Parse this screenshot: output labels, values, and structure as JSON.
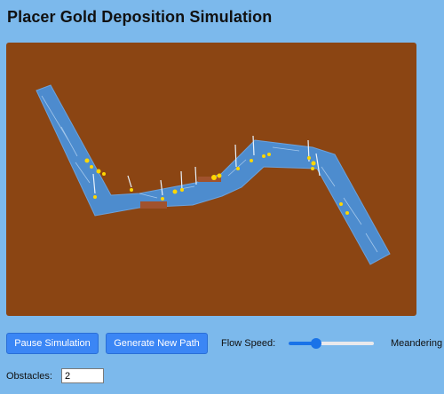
{
  "page": {
    "title": "Placer Gold Deposition Simulation"
  },
  "simulation": {
    "colors": {
      "sediment": "#8b4513",
      "water": "#4a90d9",
      "gold": "#ffd700",
      "obstacle": "#a0522d"
    }
  },
  "controls": {
    "pause_label": "Pause Simulation",
    "new_path_label": "Generate New Path",
    "flow_speed_label": "Flow Speed:",
    "flow_speed_level": 0.32,
    "meandering_label": "Meandering",
    "obstacles_label": "Obstacles:",
    "obstacles_value": "2"
  }
}
